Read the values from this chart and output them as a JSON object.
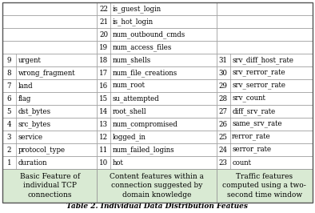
{
  "title": "Table 2. Individual Data Distribution Featues",
  "col_headers": [
    "Basic Feature of\nindividual TCP\nconnections",
    "Content features within a\nconnection suggested by\ndomain knowledge",
    "Traffic features\ncomputed using a two-\nsecond time window"
  ],
  "header_bg": "#d9ead3",
  "col1_data": [
    [
      "1",
      "duration"
    ],
    [
      "2",
      "protocol_type"
    ],
    [
      "3",
      "service"
    ],
    [
      "4",
      "src_bytes"
    ],
    [
      "5",
      "dst_bytes"
    ],
    [
      "6",
      "flag"
    ],
    [
      "7",
      "land"
    ],
    [
      "8",
      "wrong_fragment"
    ],
    [
      "9",
      "urgent"
    ],
    [
      "",
      ""
    ],
    [
      "",
      ""
    ],
    [
      "",
      ""
    ],
    [
      "",
      ""
    ]
  ],
  "col2_data": [
    [
      "10",
      "hot"
    ],
    [
      "11",
      "num_failed_logins"
    ],
    [
      "12",
      "logged_in"
    ],
    [
      "13",
      "num_compromised"
    ],
    [
      "14",
      "root_shell"
    ],
    [
      "15",
      "su_attempted"
    ],
    [
      "16",
      "num_root"
    ],
    [
      "17",
      "num_file_creations"
    ],
    [
      "18",
      "num_shells"
    ],
    [
      "19",
      "num_access_files"
    ],
    [
      "20",
      "num_outbound_cmds"
    ],
    [
      "21",
      "is_hot_login"
    ],
    [
      "22",
      "is_guest_login"
    ]
  ],
  "col3_data": [
    [
      "23",
      "count"
    ],
    [
      "24",
      "serror_rate"
    ],
    [
      "25",
      "rerror_rate"
    ],
    [
      "26",
      "same_srv_rate"
    ],
    [
      "27",
      "diff_srv_rate"
    ],
    [
      "28",
      "srv_count"
    ],
    [
      "29",
      "srv_serror_rate"
    ],
    [
      "30",
      "srv_rerror_rate"
    ],
    [
      "31",
      "srv_diff_host_rate"
    ],
    [
      "",
      ""
    ],
    [
      "",
      ""
    ],
    [
      "",
      ""
    ],
    [
      "",
      ""
    ]
  ],
  "n_rows": 13,
  "border_color": "#999999",
  "font_size": 6.2,
  "header_font_size": 6.5,
  "title_font_size": 6.5
}
